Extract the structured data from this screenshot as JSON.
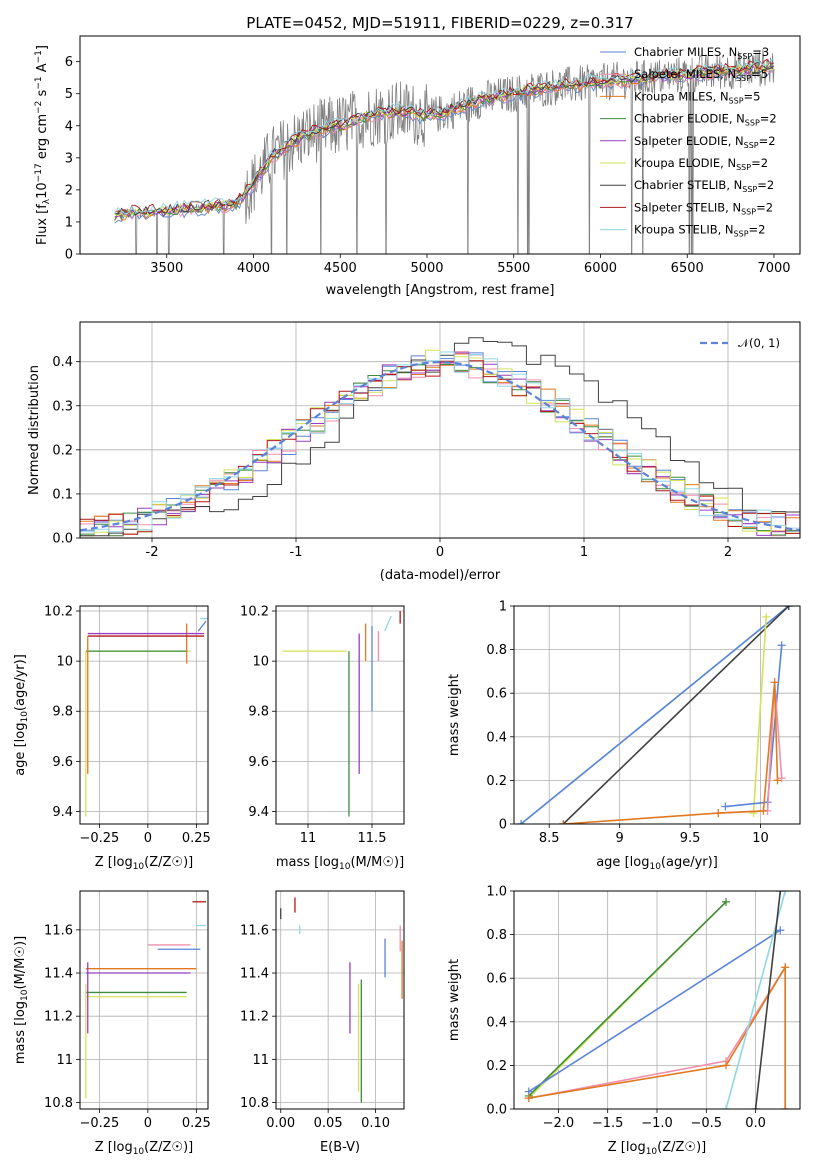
{
  "chart_data": [
    {
      "id": "spectrum",
      "type": "line",
      "title": "PLATE=0452, MJD=51911, FIBERID=0229, z=0.317",
      "xlabel": "wavelength [Angstrom, rest frame]",
      "ylabel": "Flux [f_λ 10^-17 erg cm^-2 s^-1 A^-1]",
      "xlim": [
        3000,
        7150
      ],
      "ylim": [
        0,
        6.8
      ],
      "xticks": [
        3500,
        4000,
        4500,
        5000,
        5500,
        6000,
        6500,
        7000
      ],
      "yticks": [
        0,
        1,
        2,
        3,
        4,
        5,
        6
      ],
      "grid": false,
      "legend_position": "top-right",
      "data_x_range": [
        3200,
        7000
      ],
      "model_curve": {
        "x": [
          3200,
          3300,
          3400,
          3500,
          3600,
          3700,
          3800,
          3900,
          4000,
          4100,
          4200,
          4300,
          4400,
          4500,
          4600,
          4700,
          4800,
          4900,
          5000,
          5100,
          5200,
          5300,
          5400,
          5500,
          5600,
          5700,
          5800,
          5900,
          6000,
          6100,
          6200,
          6300,
          6400,
          6500,
          6600,
          6700,
          6800,
          6900,
          7000
        ],
        "y": [
          1.2,
          1.3,
          1.3,
          1.35,
          1.4,
          1.45,
          1.5,
          1.55,
          2.2,
          3.0,
          3.4,
          3.7,
          3.9,
          4.0,
          4.2,
          4.35,
          4.45,
          4.4,
          4.3,
          4.4,
          4.6,
          4.8,
          4.9,
          5.0,
          5.1,
          5.2,
          5.25,
          5.3,
          5.35,
          5.4,
          5.45,
          5.5,
          5.55,
          5.6,
          5.65,
          5.7,
          5.75,
          5.8,
          5.85
        ]
      },
      "legend": [
        {
          "label": "Chabrier MILES, N_SSP=3",
          "color": "#5b84d6"
        },
        {
          "label": "Salpeter MILES, N_SSP=5",
          "color": "#f08fae"
        },
        {
          "label": "Kroupa MILES, N_SSP=5",
          "color": "#e0791f"
        },
        {
          "label": "Chabrier ELODIE, N_SSP=2",
          "color": "#3c8c3c"
        },
        {
          "label": "Salpeter ELODIE, N_SSP=2",
          "color": "#9a3fc1"
        },
        {
          "label": "Kroupa ELODIE, N_SSP=2",
          "color": "#d4e25a"
        },
        {
          "label": "Chabrier STELIB, N_SSP=2",
          "color": "#404040"
        },
        {
          "label": "Salpeter STELIB, N_SSP=2",
          "color": "#b01818"
        },
        {
          "label": "Kroupa STELIB, N_SSP=2",
          "color": "#8fd6e6"
        }
      ]
    },
    {
      "id": "residuals",
      "type": "line",
      "xlabel": "(data-model)/error",
      "ylabel": "Normed distribution",
      "xlim": [
        -2.5,
        2.5
      ],
      "ylim": [
        0,
        0.49
      ],
      "xticks": [
        -2,
        -1,
        0,
        1,
        2
      ],
      "yticks": [
        0.0,
        0.1,
        0.2,
        0.3,
        0.4
      ],
      "grid": true,
      "legend_position": "top-right",
      "legend": [
        {
          "label": "𝒩(0, 1)",
          "color": "#5b84d6",
          "style": "dashed"
        }
      ],
      "bin_width": 0.1,
      "step_colors": [
        "#5b84d6",
        "#f08fae",
        "#e0791f",
        "#3c8c3c",
        "#9a3fc1",
        "#d4e25a",
        "#404040",
        "#b01818",
        "#8fd6e6"
      ]
    },
    {
      "id": "age-vs-Z",
      "type": "scatter",
      "xlabel": "Z [log10(Z/Z☉)]",
      "ylabel": "age [log10(age/yr)]",
      "xlim": [
        -0.35,
        0.31
      ],
      "ylim": [
        9.35,
        10.22
      ],
      "xticks": [
        -0.25,
        0.0,
        0.25
      ],
      "yticks": [
        9.4,
        9.6,
        9.8,
        10.0,
        10.2
      ],
      "grid": true,
      "segments": [
        {
          "color": "#d4e25a",
          "x": [
            -0.32,
            0.22
          ],
          "y": [
            10.04,
            10.04
          ]
        },
        {
          "color": "#3c8c3c",
          "x": [
            -0.32,
            0.2
          ],
          "y": [
            10.04,
            10.04
          ]
        },
        {
          "color": "#e0791f",
          "x": [
            0.2,
            0.2
          ],
          "y": [
            9.99,
            10.15
          ]
        },
        {
          "color": "#9a3fc1",
          "x": [
            -0.31,
            0.29
          ],
          "y": [
            10.11,
            10.11
          ]
        },
        {
          "color": "#b01818",
          "x": [
            -0.31,
            0.29
          ],
          "y": [
            10.1,
            10.1
          ]
        },
        {
          "color": "#5b84d6",
          "x": [
            0.26,
            0.3
          ],
          "y": [
            10.12,
            10.16
          ]
        },
        {
          "color": "#8fd6e6",
          "x": [
            0.27,
            0.31
          ],
          "y": [
            10.17,
            10.17
          ]
        },
        {
          "color": "#d4e25a",
          "x": [
            -0.32,
            -0.32
          ],
          "y": [
            9.38,
            10.04
          ]
        },
        {
          "color": "#e0791f",
          "x": [
            -0.31,
            -0.31
          ],
          "y": [
            9.55,
            10.1
          ]
        }
      ]
    },
    {
      "id": "age-vs-mass",
      "type": "scatter",
      "xlabel": "mass [log10(M/M☉)]",
      "ylabel": "",
      "xlim": [
        10.75,
        11.75
      ],
      "ylim": [
        9.35,
        10.22
      ],
      "xticks": [
        11.0,
        11.5
      ],
      "yticks": [
        9.4,
        9.6,
        9.8,
        10.0,
        10.2
      ],
      "grid": true,
      "segments": [
        {
          "color": "#d4e25a",
          "x": [
            10.8,
            11.3
          ],
          "y": [
            10.04,
            10.04
          ]
        },
        {
          "color": "#3c8c3c",
          "x": [
            11.32,
            11.32
          ],
          "y": [
            9.38,
            10.04
          ]
        },
        {
          "color": "#9a3fc1",
          "x": [
            11.4,
            11.4
          ],
          "y": [
            9.55,
            10.11
          ]
        },
        {
          "color": "#e0791f",
          "x": [
            11.45,
            11.45
          ],
          "y": [
            10.0,
            10.15
          ]
        },
        {
          "color": "#f08fae",
          "x": [
            11.55,
            11.55
          ],
          "y": [
            10.0,
            10.12
          ]
        },
        {
          "color": "#5b84d6",
          "x": [
            11.5,
            11.5
          ],
          "y": [
            9.8,
            10.14
          ]
        },
        {
          "color": "#b01818",
          "x": [
            11.72,
            11.72
          ],
          "y": [
            10.15,
            10.2
          ]
        },
        {
          "color": "#8fd6e6",
          "x": [
            11.6,
            11.65
          ],
          "y": [
            10.12,
            10.18
          ]
        }
      ]
    },
    {
      "id": "massweight-vs-age",
      "type": "line",
      "xlabel": "age [log10(age/yr)]",
      "ylabel": "mass weight",
      "xlim": [
        8.25,
        10.28
      ],
      "ylim": [
        0.0,
        1.0
      ],
      "xticks": [
        8.5,
        9.0,
        9.5,
        10.0
      ],
      "yticks": [
        0.0,
        0.2,
        0.4,
        0.6,
        0.8,
        1.0
      ],
      "grid": true,
      "series": [
        {
          "color": "#8fd6e6",
          "x": [
            8.3,
            10.2
          ],
          "y": [
            0.0,
            1.0
          ]
        },
        {
          "color": "#5b84d6",
          "x": [
            8.3,
            10.2
          ],
          "y": [
            0.0,
            1.0
          ]
        },
        {
          "color": "#404040",
          "x": [
            8.6,
            10.2
          ],
          "y": [
            0.0,
            1.0
          ]
        },
        {
          "color": "#d4e25a",
          "x": [
            9.95,
            10.04
          ],
          "y": [
            0.05,
            0.95
          ]
        },
        {
          "color": "#5b84d6",
          "x": [
            9.75,
            10.05,
            10.15
          ],
          "y": [
            0.08,
            0.1,
            0.82
          ]
        },
        {
          "color": "#f08fae",
          "x": [
            9.7,
            10.05,
            10.1,
            10.15
          ],
          "y": [
            0.05,
            0.06,
            0.65,
            0.21
          ]
        },
        {
          "color": "#e0791f",
          "x": [
            8.6,
            9.7,
            10.02,
            10.1,
            10.12
          ],
          "y": [
            0.0,
            0.05,
            0.06,
            0.65,
            0.2
          ]
        }
      ]
    },
    {
      "id": "mass-vs-Z",
      "type": "scatter",
      "xlabel": "Z [log10(Z/Z☉)]",
      "ylabel": "mass [log10(M/M☉)]",
      "xlim": [
        -0.35,
        0.31
      ],
      "ylim": [
        10.77,
        11.78
      ],
      "xticks": [
        -0.25,
        0.0,
        0.25
      ],
      "yticks": [
        10.8,
        11.0,
        11.2,
        11.4,
        11.6
      ],
      "grid": true,
      "segments": [
        {
          "color": "#d4e25a",
          "x": [
            -0.32,
            0.2
          ],
          "y": [
            11.29,
            11.29
          ]
        },
        {
          "color": "#3c8c3c",
          "x": [
            -0.32,
            0.2
          ],
          "y": [
            11.31,
            11.31
          ]
        },
        {
          "color": "#9a3fc1",
          "x": [
            -0.32,
            0.22
          ],
          "y": [
            11.4,
            11.4
          ]
        },
        {
          "color": "#e0791f",
          "x": [
            -0.32,
            0.25
          ],
          "y": [
            11.42,
            11.42
          ]
        },
        {
          "color": "#f08fae",
          "x": [
            0.0,
            0.22
          ],
          "y": [
            11.53,
            11.53
          ]
        },
        {
          "color": "#5b84d6",
          "x": [
            0.05,
            0.27
          ],
          "y": [
            11.51,
            11.51
          ]
        },
        {
          "color": "#b01818",
          "x": [
            0.23,
            0.3
          ],
          "y": [
            11.73,
            11.73
          ]
        },
        {
          "color": "#8fd6e6",
          "x": [
            0.25,
            0.3
          ],
          "y": [
            11.62,
            11.62
          ]
        },
        {
          "color": "#d4e25a",
          "x": [
            -0.32,
            -0.32
          ],
          "y": [
            10.82,
            11.35
          ]
        },
        {
          "color": "#9a3fc1",
          "x": [
            -0.31,
            -0.31
          ],
          "y": [
            11.12,
            11.45
          ]
        }
      ]
    },
    {
      "id": "mass-vs-EBV",
      "type": "scatter",
      "xlabel": "E(B-V)",
      "ylabel": "",
      "xlim": [
        -0.005,
        0.13
      ],
      "ylim": [
        10.77,
        11.78
      ],
      "xticks": [
        0.0,
        0.05,
        0.1
      ],
      "yticks": [
        10.8,
        11.0,
        11.2,
        11.4,
        11.6
      ],
      "grid": true,
      "segments": [
        {
          "color": "#404040",
          "x": [
            0.0,
            0.0
          ],
          "y": [
            11.65,
            11.7
          ]
        },
        {
          "color": "#b01818",
          "x": [
            0.015,
            0.015
          ],
          "y": [
            11.68,
            11.75
          ]
        },
        {
          "color": "#8fd6e6",
          "x": [
            0.02,
            0.02
          ],
          "y": [
            11.58,
            11.62
          ]
        },
        {
          "color": "#9a3fc1",
          "x": [
            0.073,
            0.073
          ],
          "y": [
            11.12,
            11.45
          ]
        },
        {
          "color": "#d4e25a",
          "x": [
            0.082,
            0.082
          ],
          "y": [
            10.85,
            11.35
          ]
        },
        {
          "color": "#3c8c3c",
          "x": [
            0.085,
            0.085
          ],
          "y": [
            10.8,
            11.37
          ]
        },
        {
          "color": "#5b84d6",
          "x": [
            0.11,
            0.11
          ],
          "y": [
            11.38,
            11.56
          ]
        },
        {
          "color": "#e0791f",
          "x": [
            0.128,
            0.128
          ],
          "y": [
            11.28,
            11.55
          ]
        },
        {
          "color": "#f08fae",
          "x": [
            0.126,
            0.126
          ],
          "y": [
            11.5,
            11.62
          ]
        }
      ]
    },
    {
      "id": "massweight-vs-Z",
      "type": "line",
      "xlabel": "Z [log10(Z/Z☉)]",
      "ylabel": "mass weight",
      "xlim": [
        -2.45,
        0.45
      ],
      "ylim": [
        0.0,
        1.0
      ],
      "xticks": [
        -2.0,
        -1.5,
        -1.0,
        -0.5,
        0.0
      ],
      "yticks": [
        0.0,
        0.2,
        0.4,
        0.6,
        0.8,
        1.0
      ],
      "grid": true,
      "series": [
        {
          "color": "#d4e25a",
          "x": [
            -2.3,
            -0.3
          ],
          "y": [
            0.05,
            0.95
          ]
        },
        {
          "color": "#3c8c3c",
          "x": [
            -2.3,
            -0.3
          ],
          "y": [
            0.06,
            0.95
          ]
        },
        {
          "color": "#5b84d6",
          "x": [
            -2.3,
            0.25
          ],
          "y": [
            0.08,
            0.82
          ]
        },
        {
          "color": "#f08fae",
          "x": [
            -2.3,
            -0.3,
            0.3,
            0.3
          ],
          "y": [
            0.05,
            0.22,
            0.65,
            0.0
          ]
        },
        {
          "color": "#e0791f",
          "x": [
            -2.3,
            -0.3,
            0.3,
            0.3
          ],
          "y": [
            0.05,
            0.2,
            0.65,
            0.0
          ]
        },
        {
          "color": "#8fd6e6",
          "x": [
            -0.3,
            0.3
          ],
          "y": [
            0.0,
            1.0
          ]
        },
        {
          "color": "#404040",
          "x": [
            0.0,
            0.25
          ],
          "y": [
            0.0,
            1.0
          ]
        }
      ]
    }
  ]
}
